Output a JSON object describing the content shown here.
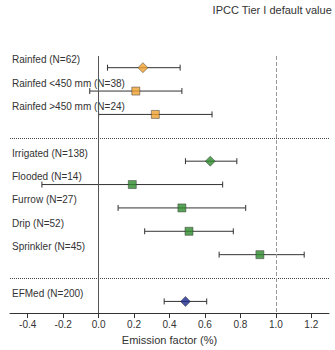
{
  "chart_data": {
    "type": "forest",
    "xlabel": "Emission factor (%)",
    "categories": [
      "Rainfed (N=62)",
      "Rainfed <450 mm (N=38)",
      "Rainfed >450 mm (N=24)",
      null,
      "Irrigated (N=138)",
      "Flooded (N=14)",
      "Furrow (N=27)",
      "Drip (N=52)",
      "Sprinkler (N=45)",
      null,
      "EFMed (N=200)"
    ],
    "xlim": [
      -0.5,
      1.3
    ],
    "xticks": [
      -0.4,
      -0.2,
      {
        "value": 0,
        "label": "0.0"
      },
      0.2,
      0.4,
      0.6,
      0.8,
      {
        "value": 1,
        "label": "1.0"
      },
      1.2
    ],
    "reference_lines": [
      {
        "x": 0,
        "line_style": "solid"
      },
      {
        "x": 1,
        "line_style": "dashed",
        "label": "IPCC Tier I default value"
      }
    ],
    "series": [
      {
        "color": "#f0a030",
        "marker": "diamond",
        "values": [
          0.25,
          null,
          null,
          null,
          null,
          null,
          null,
          null,
          null,
          null,
          null
        ],
        "ci_lower": [
          0.05,
          null,
          null,
          null,
          null,
          null,
          null,
          null,
          null,
          null,
          null
        ],
        "ci_upper": [
          0.46,
          null,
          null,
          null,
          null,
          null,
          null,
          null,
          null,
          null,
          null
        ]
      },
      {
        "color": "#f0a030",
        "marker": "square",
        "values": [
          null,
          0.21,
          0.32,
          null,
          null,
          null,
          null,
          null,
          null,
          null,
          null
        ],
        "ci_lower": [
          null,
          -0.05,
          0.0,
          null,
          null,
          null,
          null,
          null,
          null,
          null,
          null
        ],
        "ci_upper": [
          null,
          0.47,
          0.64,
          null,
          null,
          null,
          null,
          null,
          null,
          null,
          null
        ]
      },
      {
        "color": "#2e8b2e",
        "marker": "diamond",
        "values": [
          null,
          null,
          null,
          null,
          0.63,
          null,
          null,
          null,
          null,
          null,
          null
        ],
        "ci_lower": [
          null,
          null,
          null,
          null,
          0.49,
          null,
          null,
          null,
          null,
          null,
          null
        ],
        "ci_upper": [
          null,
          null,
          null,
          null,
          0.78,
          null,
          null,
          null,
          null,
          null,
          null
        ]
      },
      {
        "color": "#2e8b2e",
        "marker": "square",
        "values": [
          null,
          null,
          null,
          null,
          null,
          0.19,
          0.47,
          0.51,
          0.91,
          null,
          null
        ],
        "ci_lower": [
          null,
          null,
          null,
          null,
          null,
          -0.32,
          0.11,
          0.26,
          0.68,
          null,
          null
        ],
        "ci_upper": [
          null,
          null,
          null,
          null,
          null,
          0.7,
          0.83,
          0.76,
          1.16,
          null,
          null
        ]
      },
      {
        "color": "#1c2a8c",
        "marker": "diamond",
        "values": [
          null,
          null,
          null,
          null,
          null,
          null,
          null,
          null,
          null,
          null,
          0.49
        ],
        "ci_lower": [
          null,
          null,
          null,
          null,
          null,
          null,
          null,
          null,
          null,
          null,
          0.37
        ],
        "ci_upper": [
          null,
          null,
          null,
          null,
          null,
          null,
          null,
          null,
          null,
          null,
          0.61
        ]
      }
    ]
  }
}
